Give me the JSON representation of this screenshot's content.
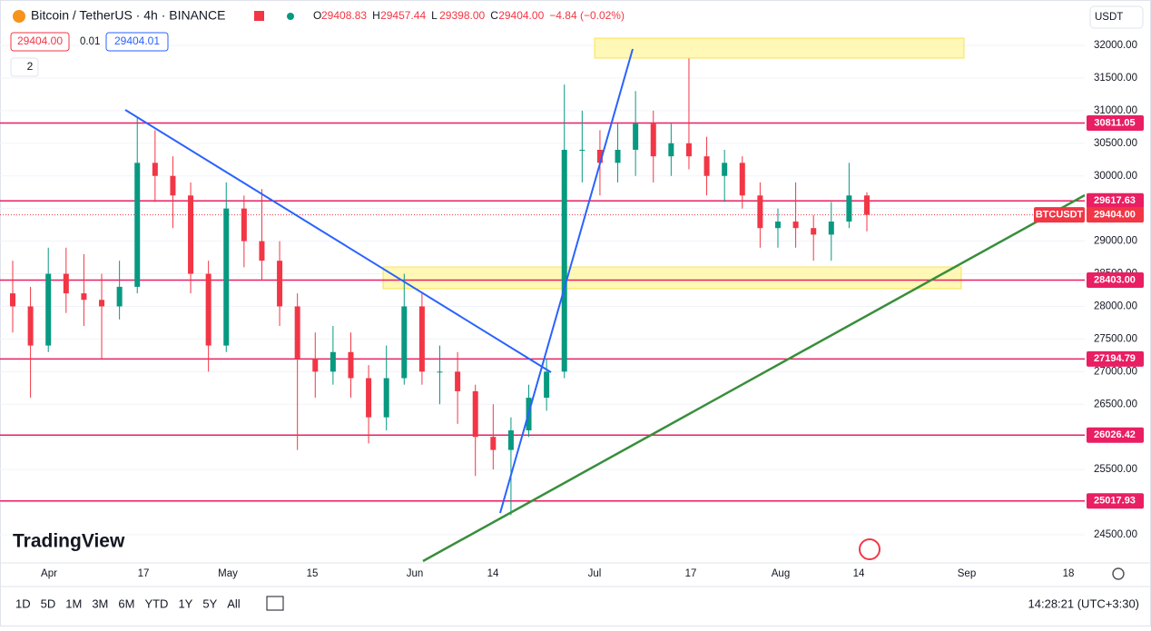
{
  "header": {
    "title": "Bitcoin / TetherUS · 4h · BINANCE",
    "ohlc": [
      {
        "label": "O",
        "value": "29408.83"
      },
      {
        "label": "H",
        "value": "29457.44"
      },
      {
        "label": "L",
        "value": "29398.00"
      },
      {
        "label": "C",
        "value": "29404.00"
      }
    ],
    "change": "−4.84 (−0.02%)"
  },
  "quotes": {
    "bid": "29404.00",
    "spread": "0.01",
    "ask": "29404.01"
  },
  "indicators": "2",
  "currency": "USDT",
  "price_axis": {
    "ticks": [
      {
        "value": 32000,
        "label": "32000.00"
      },
      {
        "value": 31500,
        "label": "31500.00"
      },
      {
        "value": 31000,
        "label": "31000.00"
      },
      {
        "value": 30500,
        "label": "30500.00"
      },
      {
        "value": 30000,
        "label": "30000.00"
      },
      {
        "value": 29500,
        "label": "29500.00"
      },
      {
        "value": 29000,
        "label": "29000.00"
      },
      {
        "value": 28500,
        "label": "28500.00"
      },
      {
        "value": 28000,
        "label": "28000.00"
      },
      {
        "value": 27500,
        "label": "27500.00"
      },
      {
        "value": 27000,
        "label": "27000.00"
      },
      {
        "value": 26500,
        "label": "26500.00"
      },
      {
        "value": 26000,
        "label": "26000.00"
      },
      {
        "value": 25500,
        "label": "25500.00"
      },
      {
        "value": 25000,
        "label": "25000.00"
      },
      {
        "value": 24500,
        "label": "24500.00"
      }
    ]
  },
  "levels": [
    {
      "value": 30811.05,
      "label": "30811.05"
    },
    {
      "value": 29617.63,
      "label": "29617.63"
    },
    {
      "value": 28403,
      "label": "28403.00"
    },
    {
      "value": 27194.79,
      "label": "27194.79"
    },
    {
      "value": 26026.42,
      "label": "26026.42"
    },
    {
      "value": 25017.93,
      "label": "25017.93"
    }
  ],
  "last_price": {
    "symbol": "BTCUSDT",
    "value": 29404,
    "label": "29404.00"
  },
  "time_axis": {
    "labels": [
      "Apr",
      "17",
      "May",
      "15",
      "Jun",
      "14",
      "Jul",
      "17",
      "Aug",
      "14",
      "Sep",
      "18"
    ]
  },
  "logo": "TradingView",
  "ranges": [
    "1D",
    "5D",
    "1M",
    "3M",
    "6M",
    "YTD",
    "1Y",
    "5Y",
    "All"
  ],
  "clock": "14:28:21 (UTC+3:30)",
  "candles": [
    [
      28200,
      28700,
      27600,
      28000
    ],
    [
      28000,
      28300,
      26600,
      27400
    ],
    [
      27400,
      28900,
      27300,
      28500
    ],
    [
      28500,
      28900,
      27900,
      28200
    ],
    [
      28200,
      28800,
      27700,
      28100
    ],
    [
      28100,
      28500,
      27200,
      28000
    ],
    [
      28000,
      28700,
      27800,
      28300
    ],
    [
      28300,
      30900,
      28200,
      30200
    ],
    [
      30200,
      30700,
      29600,
      30000
    ],
    [
      30000,
      30300,
      29200,
      29700
    ],
    [
      29700,
      29900,
      28200,
      28500
    ],
    [
      28500,
      28700,
      27000,
      27400
    ],
    [
      27400,
      29900,
      27300,
      29500
    ],
    [
      29500,
      29700,
      28600,
      29000
    ],
    [
      29000,
      29800,
      28400,
      28700
    ],
    [
      28700,
      29000,
      27700,
      28000
    ],
    [
      28000,
      28200,
      25800,
      27200
    ],
    [
      27200,
      27600,
      26600,
      27000
    ],
    [
      27000,
      27700,
      26800,
      27300
    ],
    [
      27300,
      27600,
      26600,
      26900
    ],
    [
      26900,
      27100,
      25900,
      26300
    ],
    [
      26300,
      27400,
      26100,
      26900
    ],
    [
      26900,
      28500,
      26800,
      28000
    ],
    [
      28000,
      28200,
      26800,
      27000
    ],
    [
      27000,
      27400,
      26500,
      27000
    ],
    [
      27000,
      27300,
      26200,
      26700
    ],
    [
      26700,
      26800,
      25400,
      26000
    ],
    [
      26000,
      26500,
      25500,
      25800
    ],
    [
      25800,
      26300,
      24800,
      26100
    ],
    [
      26100,
      26800,
      26000,
      26600
    ],
    [
      26600,
      27200,
      26400,
      27000
    ],
    [
      27000,
      31400,
      26900,
      30400
    ],
    [
      30400,
      31000,
      29900,
      30400
    ],
    [
      30400,
      30700,
      29700,
      30200
    ],
    [
      30200,
      30800,
      29900,
      30400
    ],
    [
      30400,
      31300,
      30000,
      30800
    ],
    [
      30800,
      31000,
      29900,
      30300
    ],
    [
      30300,
      30800,
      30000,
      30500
    ],
    [
      30500,
      31800,
      30100,
      30300
    ],
    [
      30300,
      30600,
      29700,
      30000
    ],
    [
      30000,
      30400,
      29600,
      30200
    ],
    [
      30200,
      30300,
      29500,
      29700
    ],
    [
      29700,
      29900,
      28900,
      29200
    ],
    [
      29200,
      29500,
      28900,
      29300
    ],
    [
      29300,
      29900,
      28900,
      29200
    ],
    [
      29200,
      29400,
      28700,
      29100
    ],
    [
      29100,
      29600,
      28700,
      29300
    ],
    [
      29300,
      30200,
      29200,
      29700
    ],
    [
      29700,
      29750,
      29150,
      29404
    ]
  ]
}
